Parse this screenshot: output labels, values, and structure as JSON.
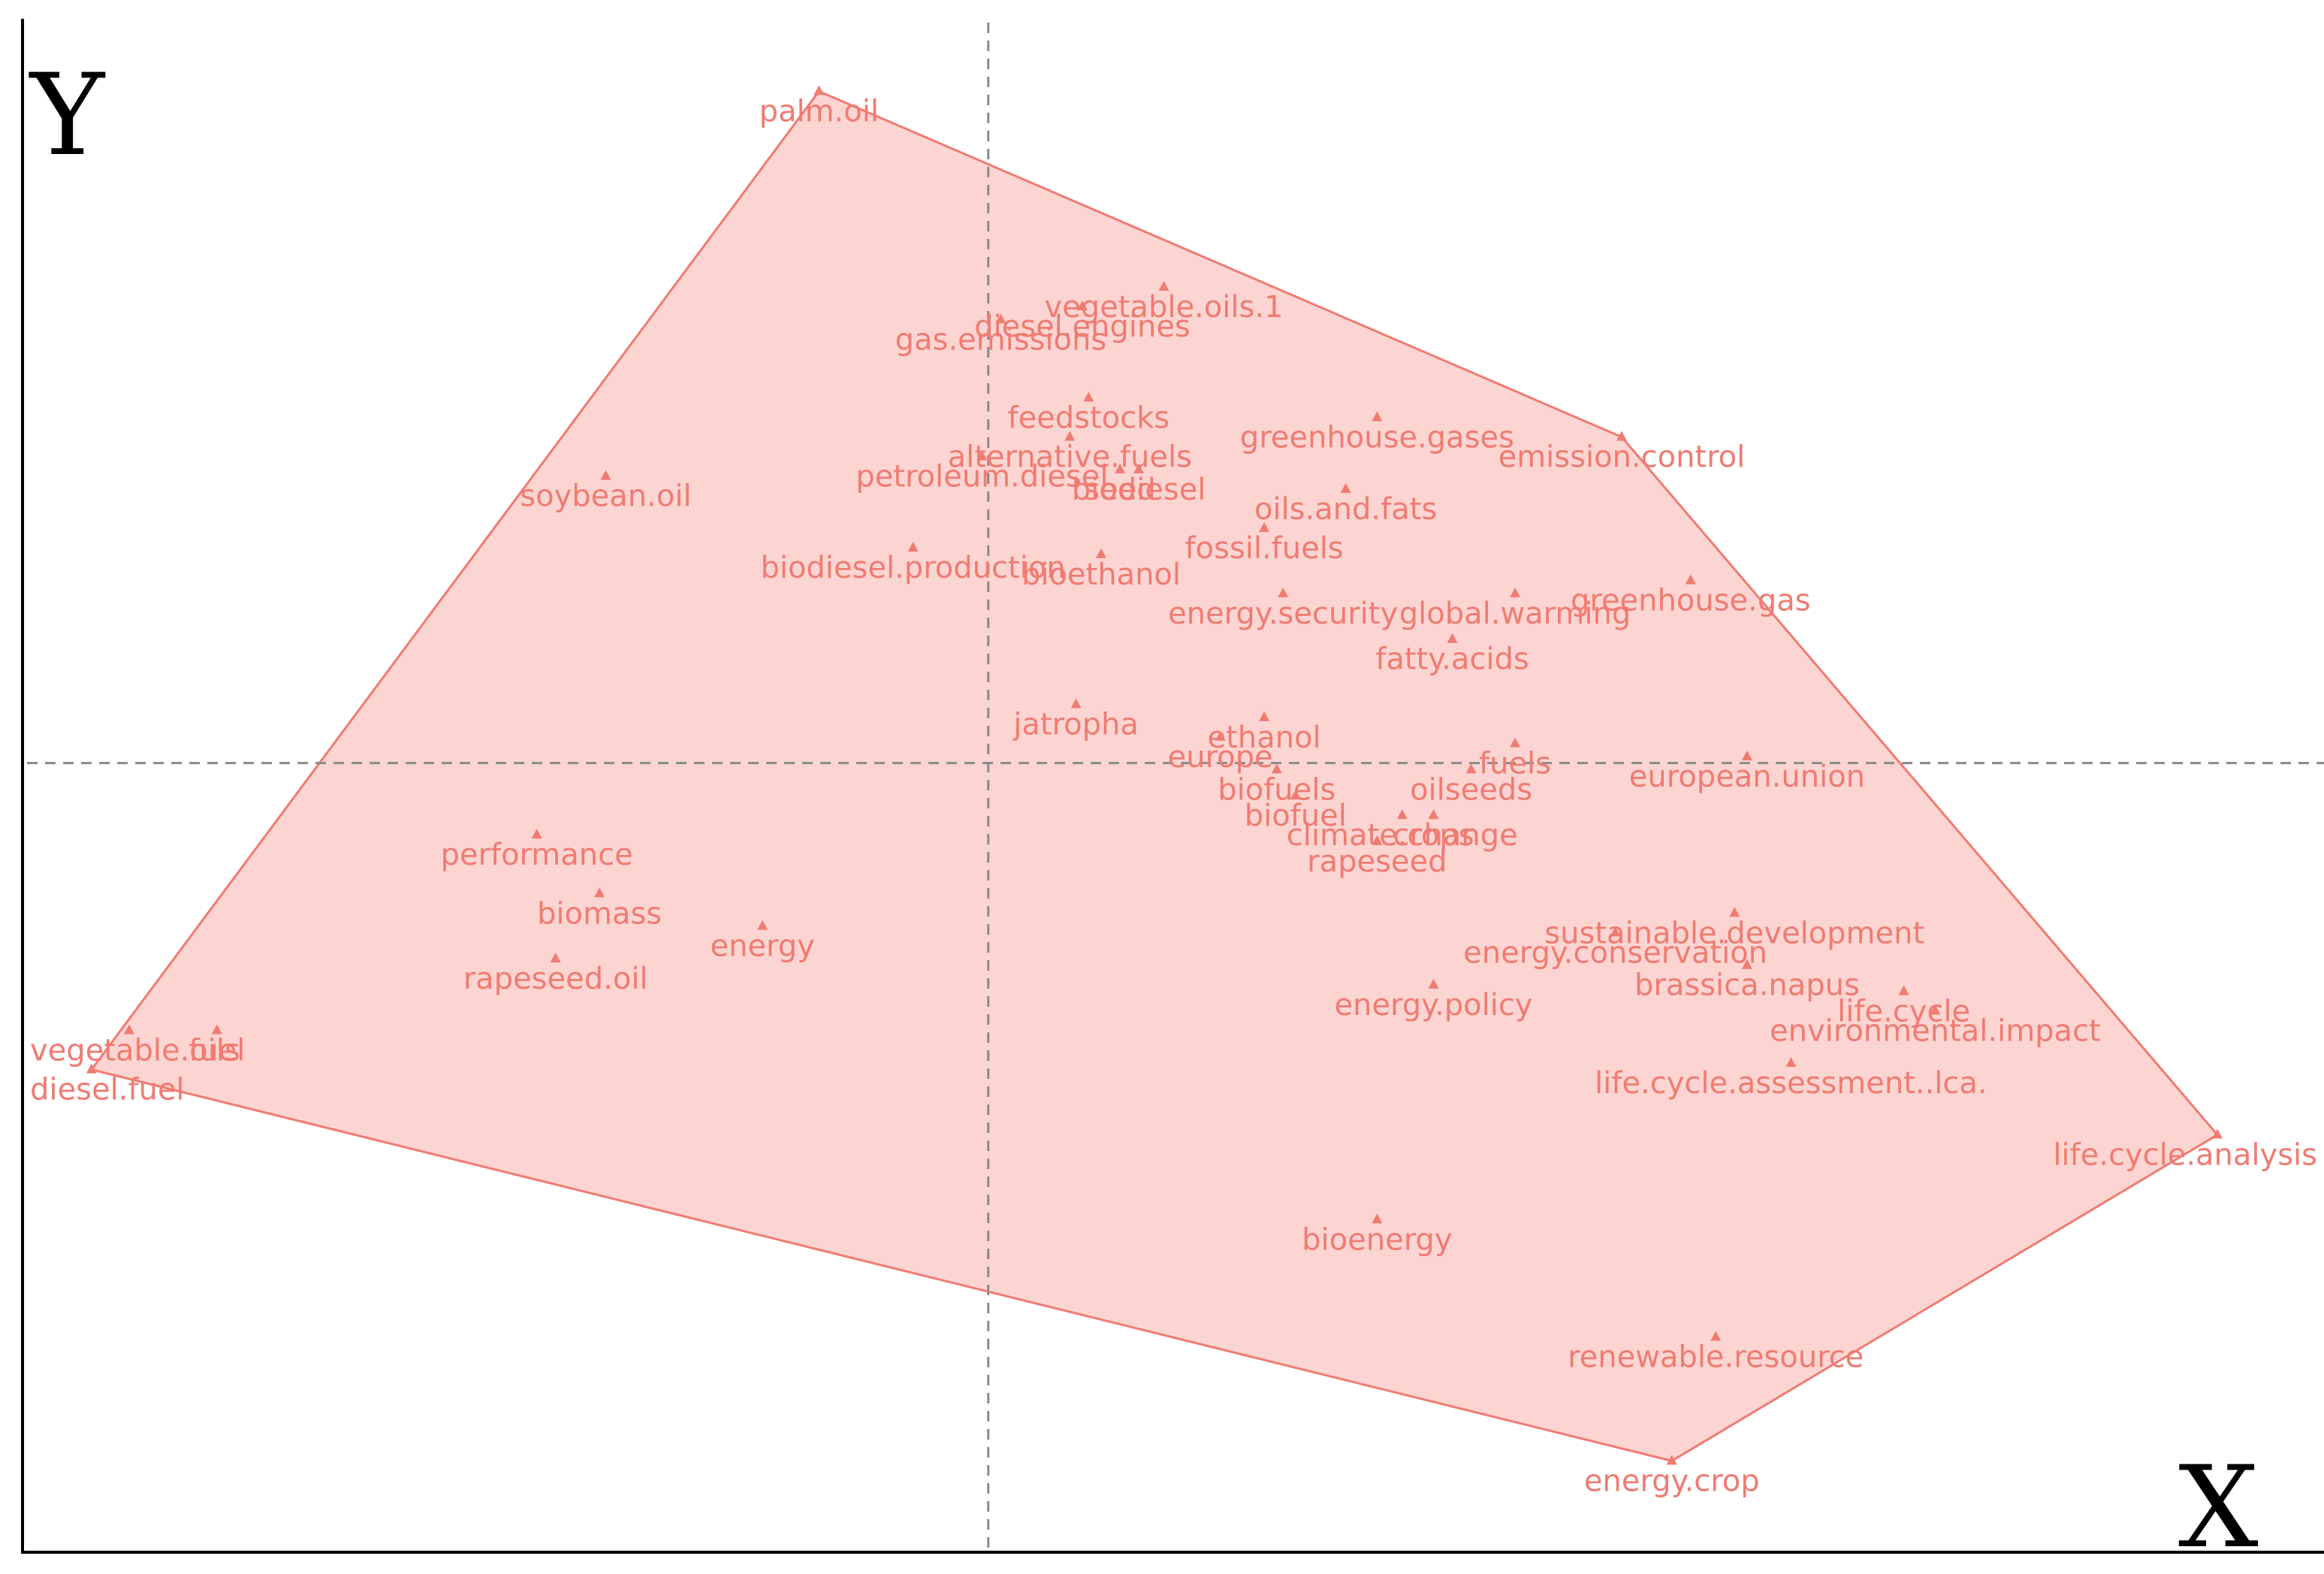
{
  "colors": {
    "fill": "#fcd5d2",
    "stroke": "#f07b72",
    "label": "#f07b72",
    "axis": "#000000",
    "dashed": "#8a8a8a"
  },
  "chart_data": {
    "type": "scatter",
    "title": "",
    "xlabel": "X",
    "ylabel": "Y",
    "xlim": [
      -1.54,
      2.13
    ],
    "ylim": [
      -1.21,
      1.17
    ],
    "grid": false,
    "reference_lines": {
      "x": 0,
      "y": 0
    },
    "hull": [
      "palm.oil",
      "emission.control",
      "life.cycle.analysis",
      "energy.crop",
      "diesel.fuel"
    ],
    "points": [
      {
        "label": "palm.oil",
        "x": -0.27,
        "y": 1.03
      },
      {
        "label": "vegetable.oils.1",
        "x": 0.28,
        "y": 0.73
      },
      {
        "label": "diesel.engines",
        "x": 0.15,
        "y": 0.7
      },
      {
        "label": "gas.emissions",
        "x": 0.02,
        "y": 0.68
      },
      {
        "label": "feedstocks",
        "x": 0.16,
        "y": 0.56
      },
      {
        "label": "greenhouse.gases",
        "x": 0.62,
        "y": 0.53
      },
      {
        "label": "alternative.fuels",
        "x": 0.13,
        "y": 0.5
      },
      {
        "label": "soybean.oil",
        "x": -0.61,
        "y": 0.44
      },
      {
        "label": "emission.control",
        "x": 1.01,
        "y": 0.5
      },
      {
        "label": "biodiesel",
        "x": 0.24,
        "y": 0.45
      },
      {
        "label": "seed",
        "x": 0.21,
        "y": 0.45
      },
      {
        "label": "petroleum.diesel",
        "x": -0.01,
        "y": 0.47
      },
      {
        "label": "oils.and.fats",
        "x": 0.57,
        "y": 0.42
      },
      {
        "label": "fossil.fuels",
        "x": 0.44,
        "y": 0.36
      },
      {
        "label": "biodiesel.production",
        "x": -0.12,
        "y": 0.33
      },
      {
        "label": "bioethanol",
        "x": 0.18,
        "y": 0.32
      },
      {
        "label": "global.warming",
        "x": 0.84,
        "y": 0.26
      },
      {
        "label": "greenhouse.gas",
        "x": 1.12,
        "y": 0.28
      },
      {
        "label": "energy.security",
        "x": 0.47,
        "y": 0.26
      },
      {
        "label": "fatty.acids",
        "x": 0.74,
        "y": 0.19
      },
      {
        "label": "jatropha",
        "x": 0.14,
        "y": 0.09
      },
      {
        "label": "ethanol",
        "x": 0.44,
        "y": 0.07
      },
      {
        "label": "europe",
        "x": 0.37,
        "y": 0.04
      },
      {
        "label": "fuels",
        "x": 0.84,
        "y": 0.03
      },
      {
        "label": "oilseeds",
        "x": 0.77,
        "y": -0.01
      },
      {
        "label": "european.union",
        "x": 1.21,
        "y": 0.01
      },
      {
        "label": "biofuels",
        "x": 0.46,
        "y": -0.01
      },
      {
        "label": "crops",
        "x": 0.71,
        "y": -0.08
      },
      {
        "label": "climate.change",
        "x": 0.66,
        "y": -0.08
      },
      {
        "label": "biofuel",
        "x": 0.49,
        "y": -0.05
      },
      {
        "label": "rapeseed",
        "x": 0.62,
        "y": -0.12
      },
      {
        "label": "performance",
        "x": -0.72,
        "y": -0.11
      },
      {
        "label": "sustainable.development",
        "x": 1.19,
        "y": -0.23
      },
      {
        "label": "biomass",
        "x": -0.62,
        "y": -0.2
      },
      {
        "label": "energy",
        "x": -0.36,
        "y": -0.25
      },
      {
        "label": "energy.conservation",
        "x": 1.0,
        "y": -0.26
      },
      {
        "label": "rapeseed.oil",
        "x": -0.69,
        "y": -0.3
      },
      {
        "label": "brassica.napus",
        "x": 1.21,
        "y": -0.31
      },
      {
        "label": "energy.policy",
        "x": 0.71,
        "y": -0.34
      },
      {
        "label": "life.cycle",
        "x": 1.46,
        "y": -0.35
      },
      {
        "label": "environmental.impact",
        "x": 1.51,
        "y": -0.38
      },
      {
        "label": "vegetable.oils",
        "x": -1.37,
        "y": -0.41
      },
      {
        "label": "fuel",
        "x": -1.23,
        "y": -0.41
      },
      {
        "label": "life.cycle.assessment..lca.",
        "x": 1.28,
        "y": -0.46
      },
      {
        "label": "diesel.fuel",
        "x": -1.43,
        "y": -0.47
      },
      {
        "label": "life.cycle.analysis",
        "x": 1.96,
        "y": -0.57
      },
      {
        "label": "bioenergy",
        "x": 0.62,
        "y": -0.7
      },
      {
        "label": "renewable.resource",
        "x": 1.16,
        "y": -0.88
      },
      {
        "label": "energy.crop",
        "x": 1.09,
        "y": -1.07
      }
    ]
  }
}
